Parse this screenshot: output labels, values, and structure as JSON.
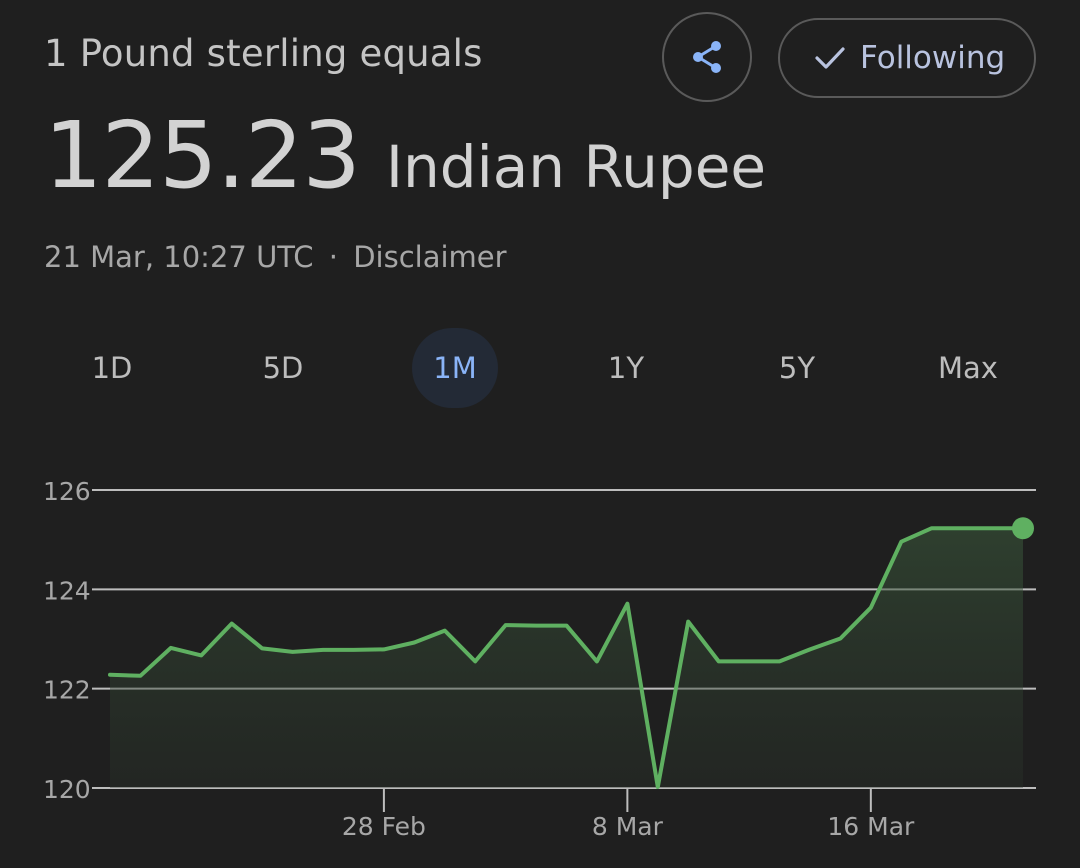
{
  "header": {
    "subtitle": "1 Pound sterling equals",
    "share_icon": "share-icon",
    "follow": {
      "icon": "check-icon",
      "label": "Following"
    }
  },
  "rate": {
    "value": "125.23",
    "currency": "Indian Rupee"
  },
  "timestamp": {
    "text": "21 Mar, 10:27 UTC",
    "separator": "·",
    "disclaimer": "Disclaimer"
  },
  "range_tabs": [
    {
      "label": "1D",
      "active": false
    },
    {
      "label": "5D",
      "active": false
    },
    {
      "label": "1M",
      "active": true
    },
    {
      "label": "1Y",
      "active": false
    },
    {
      "label": "5Y",
      "active": false
    },
    {
      "label": "Max",
      "active": false
    }
  ],
  "colors": {
    "line": "#5fb061",
    "accent": "#8ab4f8",
    "grid": "#bdbdbd"
  },
  "chart_data": {
    "type": "line",
    "x": [
      "19 Feb",
      "20 Feb",
      "21 Feb",
      "22 Feb",
      "23 Feb",
      "24 Feb",
      "25 Feb",
      "26 Feb",
      "27 Feb",
      "28 Feb",
      "1 Mar",
      "2 Mar",
      "3 Mar",
      "4 Mar",
      "5 Mar",
      "6 Mar",
      "7 Mar",
      "8 Mar",
      "9 Mar",
      "10 Mar",
      "11 Mar",
      "12 Mar",
      "13 Mar",
      "14 Mar",
      "15 Mar",
      "16 Mar",
      "17 Mar",
      "18 Mar",
      "19 Mar",
      "20 Mar",
      "21 Mar"
    ],
    "values": [
      122.28,
      122.26,
      122.82,
      122.67,
      123.31,
      122.81,
      122.74,
      122.78,
      122.78,
      122.79,
      122.93,
      123.17,
      122.55,
      123.28,
      123.27,
      123.27,
      122.55,
      123.71,
      120.02,
      123.35,
      122.55,
      122.55,
      122.55,
      122.79,
      123.01,
      123.63,
      124.96,
      125.23,
      125.23,
      125.23,
      125.23
    ],
    "ylim": [
      120,
      126
    ],
    "yticks": [
      "120",
      "122",
      "124",
      "126"
    ],
    "xticks": [
      {
        "label": "28 Feb",
        "at": "28 Feb"
      },
      {
        "label": "8 Mar",
        "at": "8 Mar"
      },
      {
        "label": "16 Mar",
        "at": "16 Mar"
      }
    ],
    "grid": true,
    "area_fill": true,
    "last_point_marker": true
  }
}
